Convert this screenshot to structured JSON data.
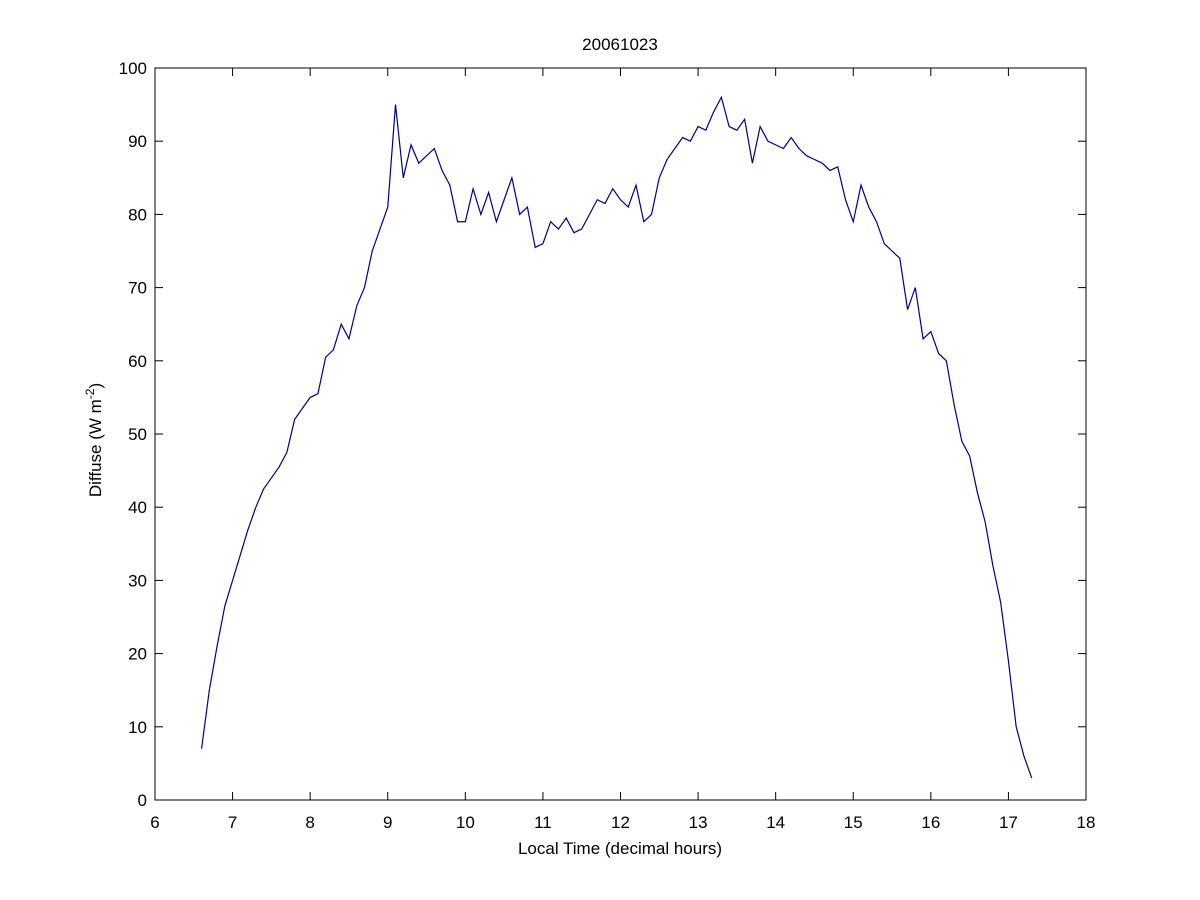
{
  "chart_data": {
    "type": "line",
    "title": "20061023",
    "xlabel": "Local Time (decimal hours)",
    "ylabel": "Diffuse (W m",
    "ylabel_superscript": "-2",
    "ylabel_suffix": ")",
    "x": [
      6.6,
      6.7,
      6.8,
      6.9,
      7,
      7.1,
      7.2,
      7.3,
      7.4,
      7.5,
      7.6,
      7.7,
      7.8,
      7.9,
      8,
      8.1,
      8.2,
      8.3,
      8.4,
      8.5,
      8.6,
      8.7,
      8.8,
      8.9,
      9,
      9.1,
      9.2,
      9.3,
      9.4,
      9.5,
      9.6,
      9.7,
      9.8,
      9.9,
      10,
      10.1,
      10.2,
      10.3,
      10.4,
      10.5,
      10.6,
      10.7,
      10.8,
      10.9,
      11,
      11.1,
      11.2,
      11.3,
      11.4,
      11.5,
      11.6,
      11.7,
      11.8,
      11.9,
      12,
      12.1,
      12.2,
      12.3,
      12.4,
      12.5,
      12.6,
      12.7,
      12.8,
      12.9,
      13,
      13.1,
      13.2,
      13.3,
      13.4,
      13.5,
      13.6,
      13.7,
      13.8,
      13.9,
      14,
      14.1,
      14.2,
      14.3,
      14.4,
      14.5,
      14.6,
      14.7,
      14.8,
      14.9,
      15,
      15.1,
      15.2,
      15.3,
      15.4,
      15.5,
      15.6,
      15.7,
      15.8,
      15.9,
      16,
      16.1,
      16.2,
      16.3,
      16.4,
      16.5,
      16.6,
      16.7,
      16.8,
      16.9,
      17,
      17.1,
      17.2,
      17.3
    ],
    "series": [
      {
        "name": "Diffuse",
        "color": "#00008b",
        "values": [
          7,
          15,
          21,
          26.5,
          30,
          33.5,
          37,
          40,
          42.5,
          44,
          45.5,
          47.5,
          52,
          53.5,
          55,
          55.5,
          60.5,
          61.5,
          65,
          63,
          67.5,
          70,
          75,
          78,
          81,
          95,
          85,
          89.5,
          87,
          88,
          89,
          86,
          84,
          79,
          79,
          83.5,
          80,
          83,
          79,
          82,
          85,
          80,
          81,
          75.5,
          76,
          79,
          78,
          79.5,
          77.5,
          78,
          80,
          82,
          81.5,
          83.5,
          82,
          81,
          84,
          79,
          80,
          85,
          87.5,
          89,
          90.5,
          90,
          92,
          91.5,
          94,
          96,
          92,
          91.5,
          93,
          87,
          92,
          90,
          89.5,
          89,
          90.5,
          89,
          88,
          87.5,
          87,
          86,
          86.5,
          82,
          79,
          84,
          81,
          79,
          76,
          75,
          74,
          67,
          70,
          63,
          64,
          61,
          60,
          54,
          49,
          47,
          42,
          38,
          32,
          27,
          19,
          10,
          6,
          3
        ]
      }
    ],
    "xlim": [
      6,
      18
    ],
    "xticks": [
      6,
      7,
      8,
      9,
      10,
      11,
      12,
      13,
      14,
      15,
      16,
      17,
      18
    ],
    "ylim": [
      0,
      100
    ],
    "yticks": [
      0,
      10,
      20,
      30,
      40,
      50,
      60,
      70,
      80,
      90,
      100
    ],
    "grid": false
  }
}
